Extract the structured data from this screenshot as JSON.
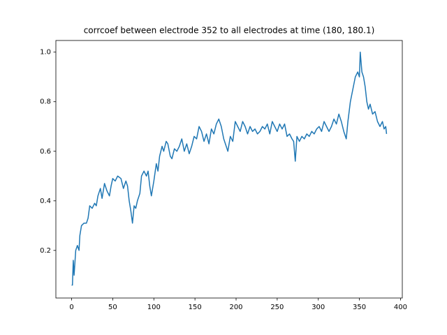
{
  "chart_data": {
    "type": "line",
    "title": "corrcoef between electrode 352 to all electrodes at time (180, 180.1)",
    "x": [
      0,
      1,
      2,
      3,
      5,
      7,
      9,
      10,
      12,
      15,
      18,
      20,
      22,
      25,
      28,
      30,
      32,
      35,
      37,
      40,
      43,
      46,
      48,
      50,
      53,
      56,
      60,
      63,
      66,
      68,
      70,
      72,
      74,
      76,
      78,
      80,
      83,
      85,
      88,
      91,
      93,
      95,
      97,
      100,
      103,
      105,
      107,
      110,
      112,
      115,
      117,
      120,
      122,
      125,
      128,
      131,
      134,
      137,
      140,
      143,
      146,
      149,
      152,
      155,
      158,
      161,
      164,
      167,
      170,
      173,
      176,
      179,
      182,
      185,
      188,
      190,
      193,
      196,
      199,
      202,
      205,
      208,
      211,
      214,
      217,
      220,
      223,
      226,
      229,
      232,
      235,
      238,
      241,
      244,
      247,
      250,
      253,
      256,
      259,
      262,
      265,
      268,
      270,
      272,
      274,
      277,
      280,
      283,
      286,
      289,
      292,
      295,
      298,
      301,
      304,
      307,
      310,
      313,
      316,
      319,
      322,
      325,
      328,
      331,
      334,
      336,
      339,
      342,
      345,
      348,
      350,
      351,
      353,
      355,
      357,
      359,
      361,
      363,
      366,
      369,
      372,
      375,
      378,
      380,
      382,
      383
    ],
    "series": [
      {
        "color": "#1f77b4",
        "values": [
          0.06,
          0.06,
          0.16,
          0.1,
          0.2,
          0.22,
          0.2,
          0.26,
          0.3,
          0.31,
          0.31,
          0.33,
          0.38,
          0.37,
          0.39,
          0.38,
          0.42,
          0.45,
          0.41,
          0.47,
          0.44,
          0.42,
          0.46,
          0.49,
          0.48,
          0.5,
          0.49,
          0.45,
          0.48,
          0.46,
          0.4,
          0.36,
          0.31,
          0.38,
          0.37,
          0.4,
          0.43,
          0.5,
          0.52,
          0.5,
          0.52,
          0.46,
          0.42,
          0.48,
          0.55,
          0.52,
          0.58,
          0.62,
          0.6,
          0.64,
          0.63,
          0.58,
          0.57,
          0.61,
          0.6,
          0.62,
          0.65,
          0.6,
          0.63,
          0.59,
          0.62,
          0.66,
          0.65,
          0.7,
          0.68,
          0.64,
          0.67,
          0.63,
          0.69,
          0.67,
          0.71,
          0.73,
          0.7,
          0.65,
          0.62,
          0.6,
          0.66,
          0.64,
          0.72,
          0.7,
          0.68,
          0.72,
          0.7,
          0.67,
          0.7,
          0.68,
          0.69,
          0.67,
          0.68,
          0.7,
          0.69,
          0.71,
          0.67,
          0.72,
          0.7,
          0.68,
          0.71,
          0.69,
          0.71,
          0.66,
          0.67,
          0.65,
          0.64,
          0.56,
          0.66,
          0.64,
          0.66,
          0.65,
          0.67,
          0.66,
          0.68,
          0.67,
          0.69,
          0.7,
          0.68,
          0.72,
          0.7,
          0.68,
          0.7,
          0.73,
          0.71,
          0.75,
          0.72,
          0.68,
          0.65,
          0.72,
          0.8,
          0.85,
          0.9,
          0.92,
          0.9,
          1.0,
          0.92,
          0.9,
          0.86,
          0.8,
          0.77,
          0.79,
          0.75,
          0.76,
          0.72,
          0.7,
          0.72,
          0.69,
          0.7,
          0.67
        ]
      }
    ],
    "xlim": [
      -19.15,
      402.15
    ],
    "ylim": [
      0.008,
      1.047
    ],
    "xticks": [
      0,
      50,
      100,
      150,
      200,
      250,
      300,
      350,
      400
    ],
    "yticks": [
      0.2,
      0.4,
      0.6,
      0.8,
      {
        "value": 1,
        "label": "1.0"
      }
    ]
  }
}
